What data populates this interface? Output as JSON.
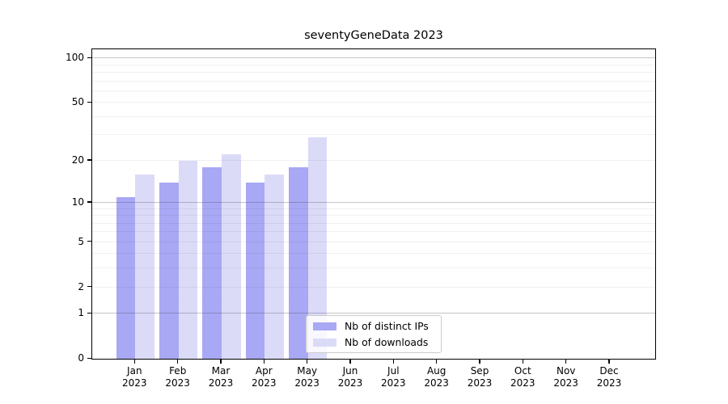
{
  "title": "seventyGeneData 2023",
  "chart_data": {
    "type": "bar",
    "title": "seventyGeneData 2023",
    "year": "2023",
    "months": [
      "Jan",
      "Feb",
      "Mar",
      "Apr",
      "May",
      "Jun",
      "Jul",
      "Aug",
      "Sep",
      "Oct",
      "Nov",
      "Dec"
    ],
    "categories": [
      "Jan 2023",
      "Feb 2023",
      "Mar 2023",
      "Apr 2023",
      "May 2023",
      "Jun 2023",
      "Jul 2023",
      "Aug 2023",
      "Sep 2023",
      "Oct 2023",
      "Nov 2023",
      "Dec 2023"
    ],
    "series": [
      {
        "name": "Nb of distinct IPs",
        "color": "#a8a8f4",
        "values": [
          11,
          14,
          18,
          14,
          18,
          null,
          null,
          null,
          null,
          null,
          null,
          null
        ]
      },
      {
        "name": "Nb of downloads",
        "color": "#dbdbf8",
        "values": [
          16,
          20,
          22,
          16,
          29,
          null,
          null,
          null,
          null,
          null,
          null,
          null
        ]
      }
    ],
    "yscale": "log1p",
    "ylim": [
      0,
      113.7
    ],
    "yticks": [
      100,
      50,
      20,
      10,
      5,
      2,
      1,
      0
    ],
    "grid_major": [
      1,
      10,
      100
    ],
    "grid_minor": [
      2,
      3,
      4,
      5,
      6,
      7,
      8,
      9,
      20,
      30,
      40,
      50,
      60,
      70,
      80,
      90
    ],
    "legend_position": "lower center",
    "xlabel": "",
    "ylabel": ""
  },
  "colors": {
    "axis": "#000000",
    "grid_major": "rgba(60,60,80,0.30)",
    "grid_minor": "rgba(60,60,80,0.08)",
    "legend_border": "#cccccc",
    "background": "#ffffff"
  }
}
